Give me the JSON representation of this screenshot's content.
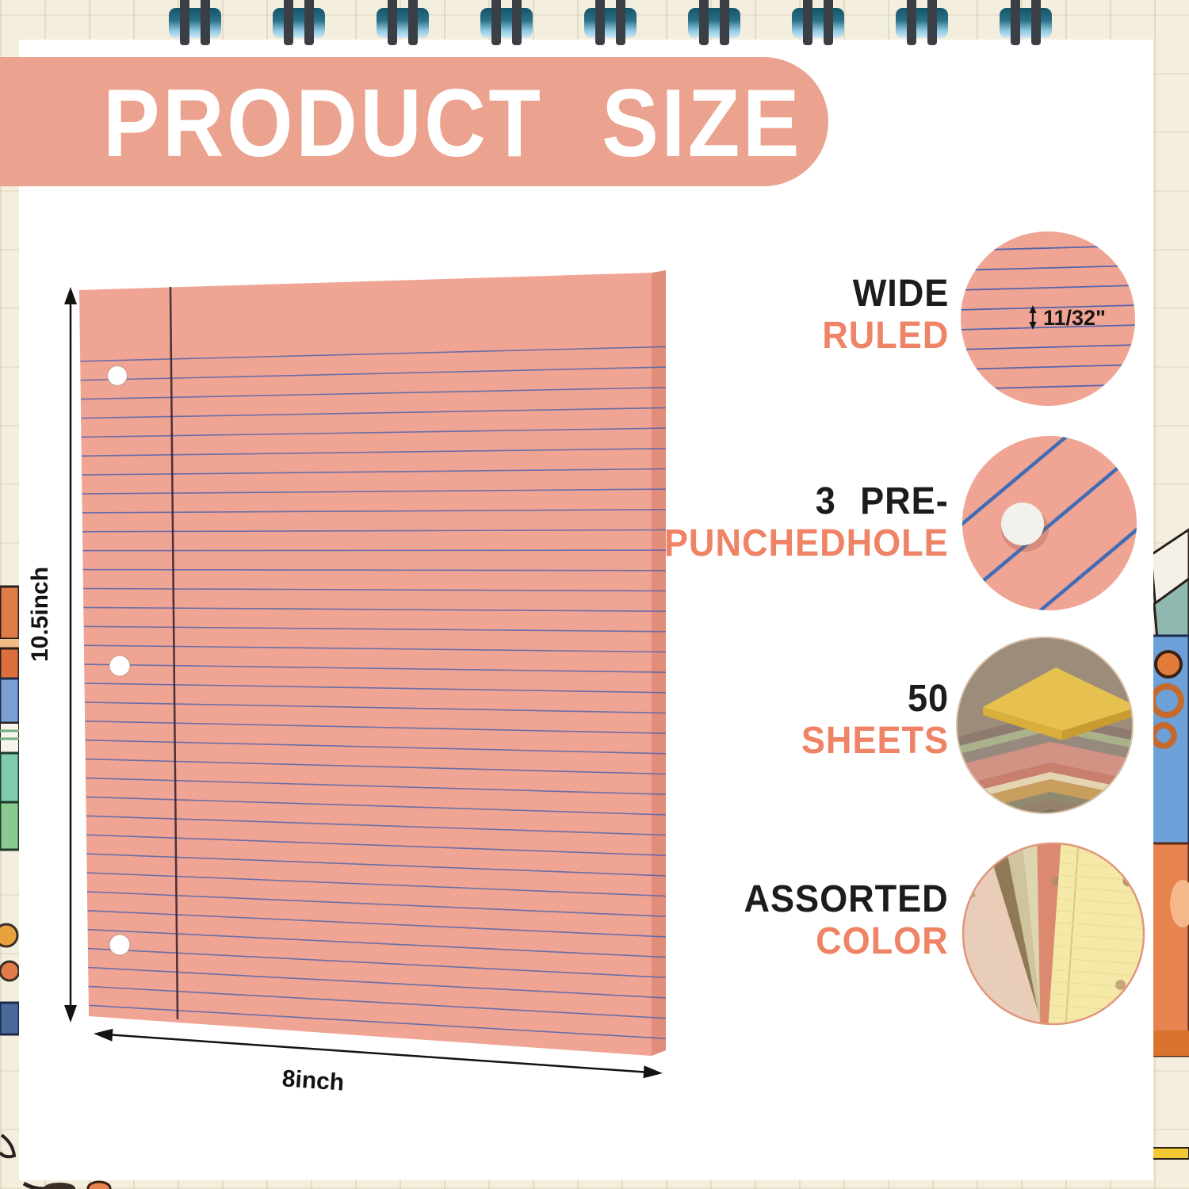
{
  "title": "PRODUCT SIZE",
  "dimensions": {
    "height": "10.5inch",
    "width": "8inch"
  },
  "features": [
    {
      "id": "wide-ruled",
      "line1": "WIDE",
      "line2": "RULED",
      "annotation": "11/32\""
    },
    {
      "id": "pre-punched",
      "line1": "3 PRE-",
      "line2": "PUNCHEDHOLE"
    },
    {
      "id": "sheet-count",
      "line1": "50",
      "line2": "SHEETS"
    },
    {
      "id": "assorted-color",
      "line1": "ASSORTED",
      "line2": "COLOR"
    }
  ],
  "colors": {
    "background_cream": "#f3eedd",
    "panel_white": "#ffffff",
    "banner_salmon": "#eba28e",
    "paper_pink": "#f0a494",
    "paper_edge": "#e18d79",
    "rule_blue": "#5465ab",
    "diag_rule_blue": "#3f6db5",
    "margin_maroon": "#3d2430",
    "accent_text_salmon": "#ee8366",
    "text_black": "#1d1b1b",
    "coil_wire": "#3a3f45",
    "coil_teal": "#1e5e72"
  },
  "palettes": {
    "sheet_stack": [
      "#8d7b70",
      "#a9b28a",
      "#98897f",
      "#d29384",
      "#c97f6d",
      "#e5d4b2",
      "#c79e5c",
      "#8f8a6e",
      "#96806a",
      "#7c7165",
      "#b5a07e",
      "#6e695b",
      "#9aa582",
      "#bfa98a",
      "#867668",
      "#cdbb9c"
    ],
    "sheet_fan": [
      "#eacdb9",
      "#8f7a55",
      "#cfc49c",
      "#ddd6b0",
      "#db8a70",
      "#f5e9a8"
    ]
  }
}
